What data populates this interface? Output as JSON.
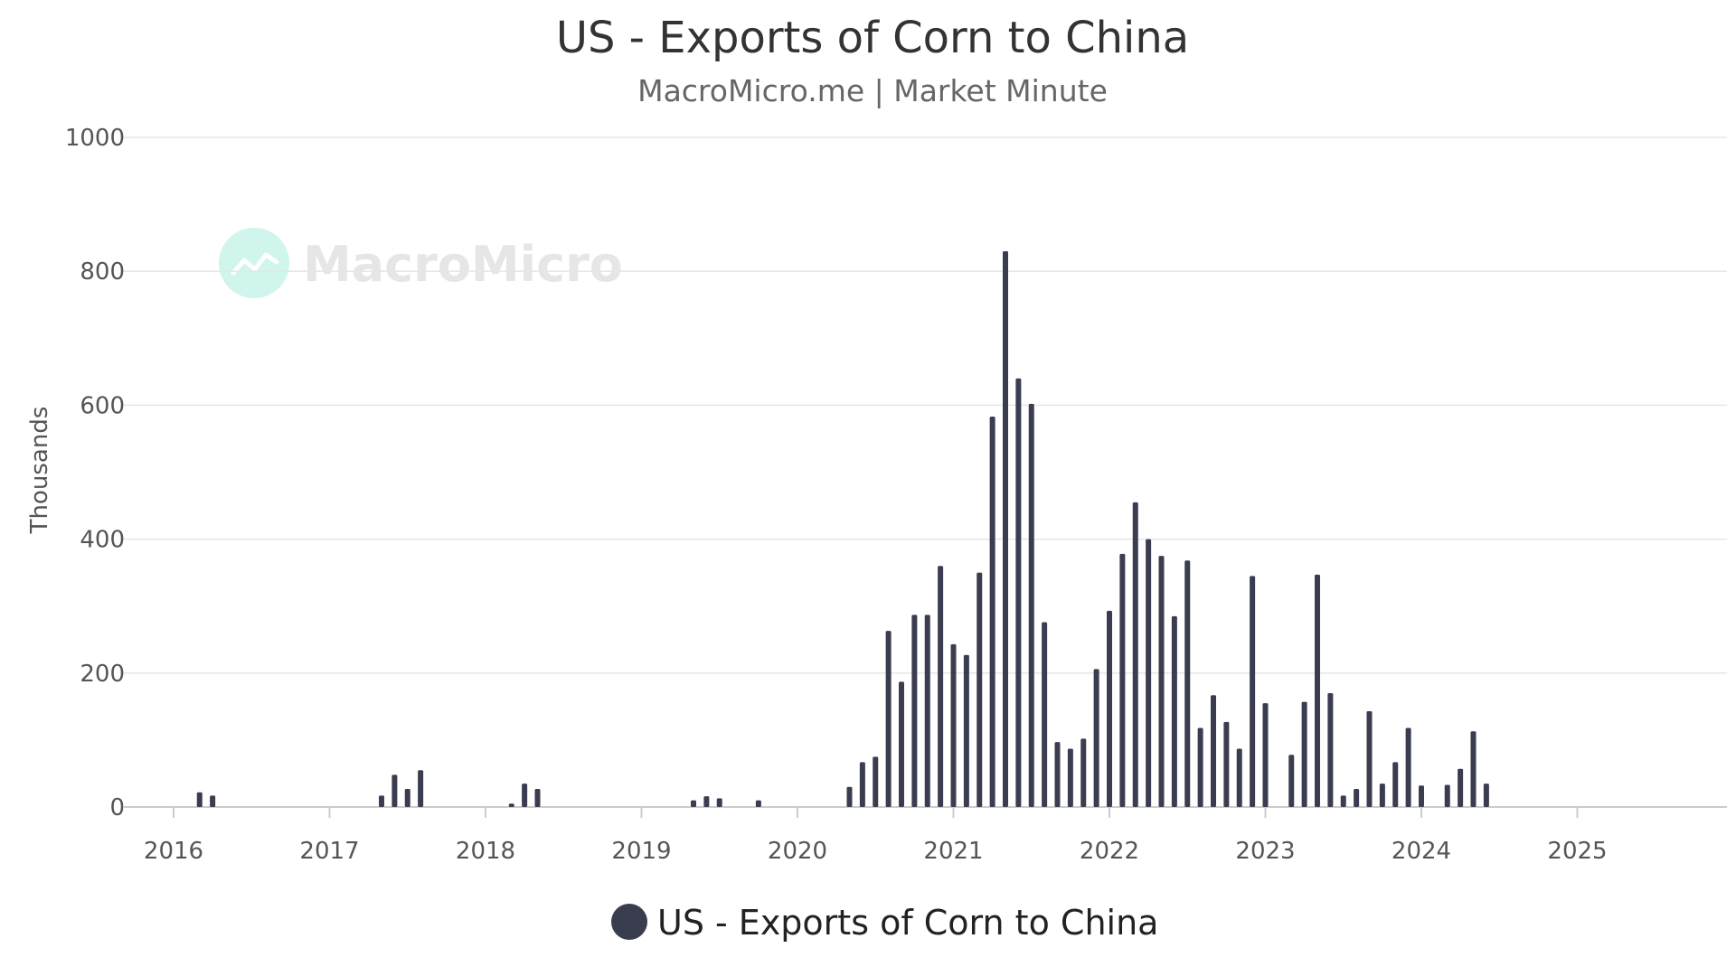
{
  "chart_data": {
    "type": "bar",
    "title": "US - Exports of Corn to China",
    "subtitle": "MacroMicro.me | Market Minute",
    "watermark": "MacroMicro",
    "ylabel": "Thousands",
    "xlabel": "",
    "ylim": [
      0,
      1000
    ],
    "yticks": [
      0,
      200,
      400,
      600,
      800,
      1000
    ],
    "xlim": [
      2016,
      2025.9
    ],
    "xticks": [
      "2016",
      "2017",
      "2018",
      "2019",
      "2020",
      "2021",
      "2022",
      "2023",
      "2024",
      "2025"
    ],
    "grid": true,
    "legend": {
      "position": "bottom-center",
      "entries": [
        "US - Exports of Corn to China"
      ]
    },
    "colors": {
      "bar": "#3a3d4f",
      "grid": "#e6e6e6",
      "axis": "#cccccc",
      "watermark_circle": "#cff5ec"
    },
    "series": [
      {
        "name": "US - Exports of Corn to China",
        "x": [
          "2016-03",
          "2016-04",
          "2017-05",
          "2017-06",
          "2017-07",
          "2017-08",
          "2018-03",
          "2018-04",
          "2018-05",
          "2019-05",
          "2019-06",
          "2019-07",
          "2019-10",
          "2020-05",
          "2020-06",
          "2020-07",
          "2020-08",
          "2020-09",
          "2020-10",
          "2020-11",
          "2020-12",
          "2021-01",
          "2021-02",
          "2021-03",
          "2021-04",
          "2021-05",
          "2021-06",
          "2021-07",
          "2021-08",
          "2021-09",
          "2021-10",
          "2021-11",
          "2021-12",
          "2022-01",
          "2022-02",
          "2022-03",
          "2022-04",
          "2022-05",
          "2022-06",
          "2022-07",
          "2022-08",
          "2022-09",
          "2022-10",
          "2022-11",
          "2022-12",
          "2023-01",
          "2023-03",
          "2023-04",
          "2023-05",
          "2023-06",
          "2023-07",
          "2023-08",
          "2023-09",
          "2023-10",
          "2023-11",
          "2023-12",
          "2024-01",
          "2024-03",
          "2024-04",
          "2024-05",
          "2024-06"
        ],
        "values": [
          22,
          17,
          17,
          48,
          27,
          55,
          5,
          35,
          27,
          10,
          16,
          13,
          10,
          30,
          67,
          75,
          263,
          187,
          287,
          287,
          360,
          243,
          227,
          350,
          583,
          830,
          640,
          602,
          276,
          97,
          87,
          102,
          206,
          293,
          378,
          455,
          400,
          375,
          285,
          368,
          118,
          167,
          127,
          87,
          345,
          155,
          78,
          157,
          347,
          170,
          17,
          27,
          143,
          35,
          67,
          118,
          32,
          33,
          57,
          113,
          35
        ]
      }
    ]
  }
}
